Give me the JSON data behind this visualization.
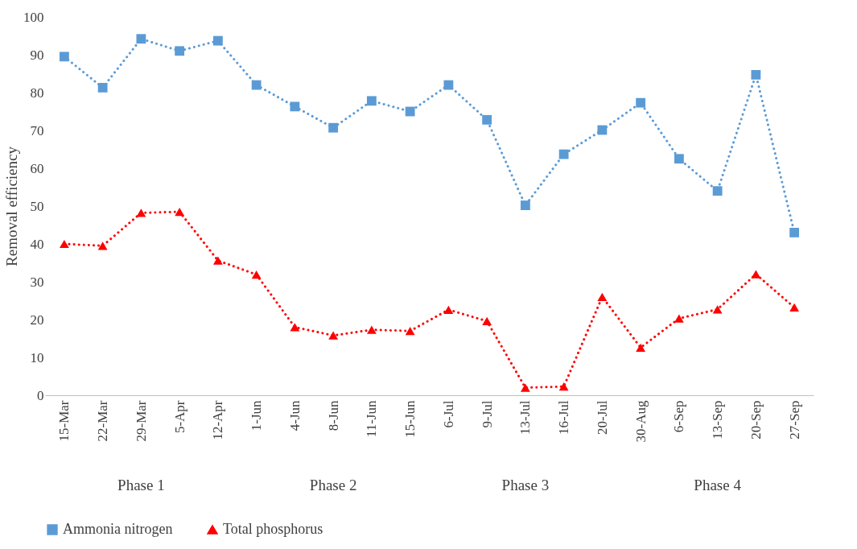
{
  "chart_data": {
    "type": "line",
    "ylabel": "Removal efficiency",
    "categories": [
      "15-Mar",
      "22-Mar",
      "29-Mar",
      "5-Apr",
      "12-Apr",
      "1-Jun",
      "4-Jun",
      "8-Jun",
      "11-Jun",
      "15-Jun",
      "6-Jul",
      "9-Jul",
      "13-Jul",
      "16-Jul",
      "20-Jul",
      "30-Aug",
      "6-Sep",
      "13-Sep",
      "20-Sep",
      "27-Sep"
    ],
    "series": [
      {
        "name": "Ammonia nitrogen",
        "color": "#5b9bd5",
        "marker": "square",
        "values": [
          89.5,
          81.3,
          94.2,
          91,
          93.7,
          82,
          76.3,
          70.7,
          77.8,
          75,
          82,
          72.8,
          50.2,
          63.7,
          70.1,
          77.3,
          62.5,
          54,
          84.7,
          43
        ]
      },
      {
        "name": "Total phosphorus",
        "color": "#ff0000",
        "marker": "triangle",
        "values": [
          40,
          39.5,
          48.2,
          48.5,
          35.6,
          31.9,
          18,
          15.8,
          17.3,
          17,
          22.6,
          19.6,
          2,
          2.3,
          26,
          12.6,
          20.3,
          22.7,
          32,
          23.2
        ]
      }
    ],
    "ylim": [
      0,
      100
    ],
    "yticks": [
      0,
      10,
      20,
      30,
      40,
      50,
      60,
      70,
      80,
      90,
      100
    ],
    "line_style": "dotted",
    "legend": "bottom",
    "grid": false,
    "annotations": [
      "Phase 1",
      "Phase 2",
      "Phase 3",
      "Phase 4"
    ]
  }
}
